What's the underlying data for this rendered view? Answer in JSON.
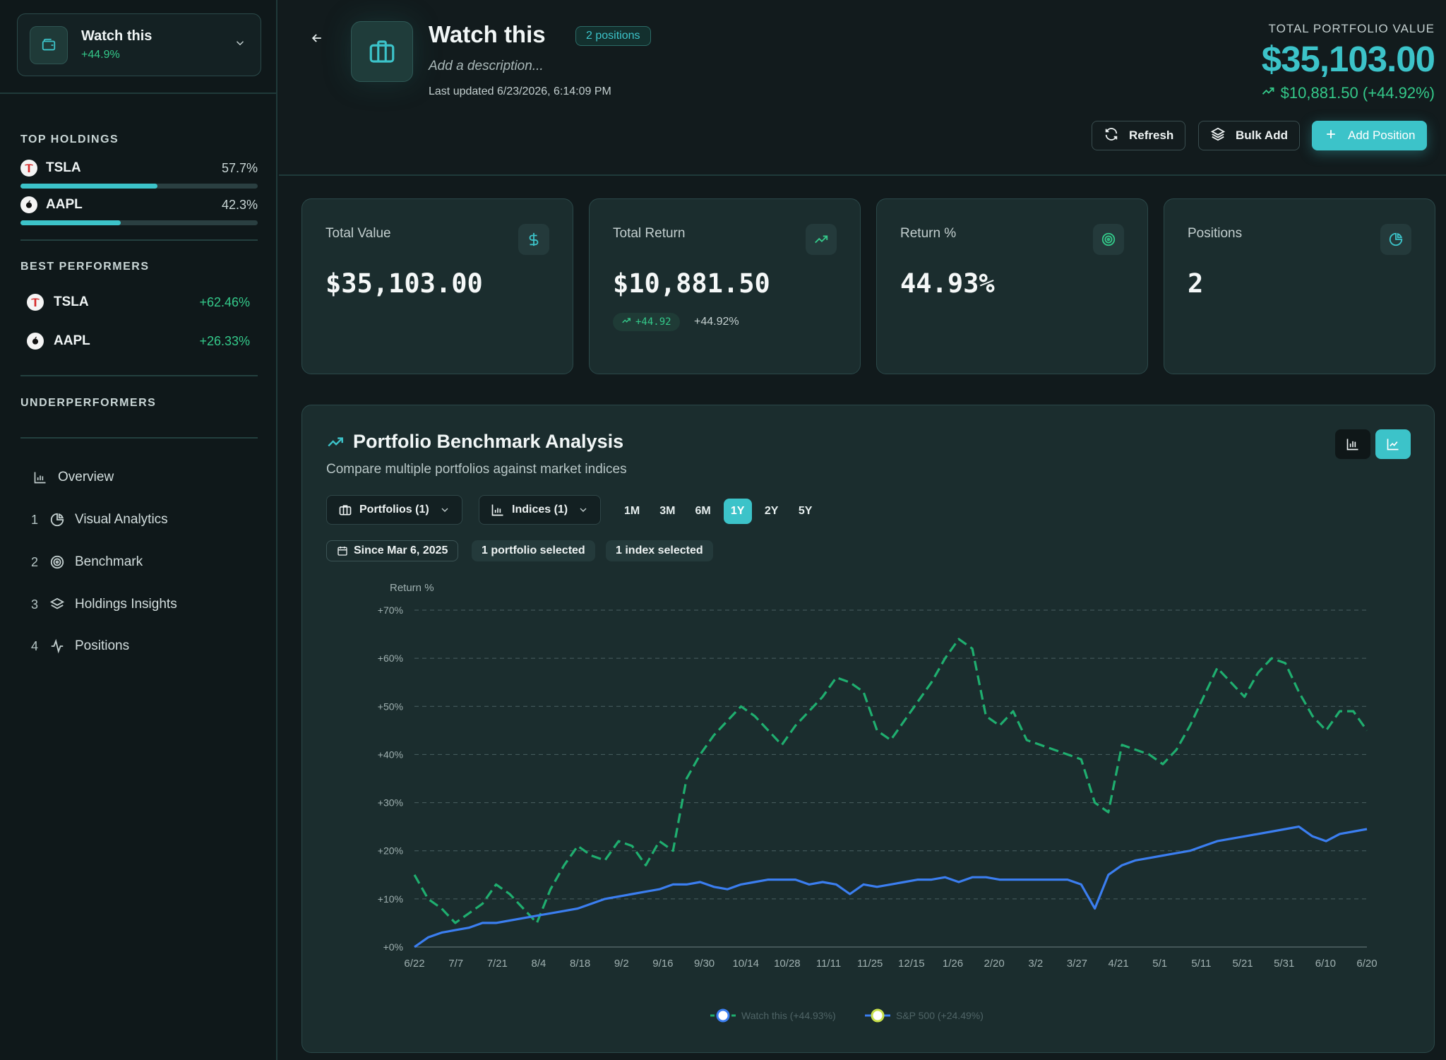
{
  "sidebar": {
    "portfolio_name": "Watch this",
    "portfolio_change": "+44.9%",
    "top_holdings_title": "TOP HOLDINGS",
    "top_holdings": [
      {
        "ticker": "TSLA",
        "pct_label": "57.7%",
        "weight": 0.577,
        "logo": "tesla-logo"
      },
      {
        "ticker": "AAPL",
        "pct_label": "42.3%",
        "weight": 0.423,
        "logo": "apple-logo"
      }
    ],
    "best_title": "BEST PERFORMERS",
    "best": [
      {
        "ticker": "TSLA",
        "change": "+62.46%",
        "logo": "tesla-logo"
      },
      {
        "ticker": "AAPL",
        "change": "+26.33%",
        "logo": "apple-logo"
      }
    ],
    "under_title": "UNDERPERFORMERS",
    "nav": [
      {
        "num": "",
        "label": "Overview",
        "icon": "bar-chart-icon"
      },
      {
        "num": "1",
        "label": "Visual Analytics",
        "icon": "pie-chart-icon"
      },
      {
        "num": "2",
        "label": "Benchmark",
        "icon": "target-icon"
      },
      {
        "num": "3",
        "label": "Holdings Insights",
        "icon": "layers-icon"
      },
      {
        "num": "4",
        "label": "Positions",
        "icon": "activity-icon"
      }
    ]
  },
  "header": {
    "title": "Watch this",
    "positions_badge": "2 positions",
    "description_placeholder": "Add a description...",
    "last_updated": "Last updated 6/23/2026, 6:14:09 PM",
    "total_label": "TOTAL PORTFOLIO VALUE",
    "total_value": "$35,103.00",
    "total_change": "$10,881.50 (+44.92%)",
    "buttons": {
      "refresh": "Refresh",
      "bulk_add": "Bulk Add",
      "add_position": "Add Position"
    }
  },
  "cards": [
    {
      "label": "Total Value",
      "value": "$35,103.00",
      "icon": "dollar-icon"
    },
    {
      "label": "Total Return",
      "value": "$10,881.50",
      "icon": "trending-up-icon",
      "chip": "+44.92",
      "sub": "+44.92%"
    },
    {
      "label": "Return %",
      "value": "44.93%",
      "icon": "target-icon"
    },
    {
      "label": "Positions",
      "value": "2",
      "icon": "pie-chart-icon"
    }
  ],
  "panel": {
    "title": "Portfolio Benchmark Analysis",
    "subtitle": "Compare multiple portfolios against market indices",
    "portfolios_dd": "Portfolios (1)",
    "indices_dd": "Indices (1)",
    "ranges": [
      "1M",
      "3M",
      "6M",
      "1Y",
      "2Y",
      "5Y"
    ],
    "active_range": "1Y",
    "since": "Since Mar 6, 2025",
    "portfolio_selected": "1 portfolio selected",
    "index_selected": "1 index selected"
  },
  "colors": {
    "accent": "#3cc3c9",
    "positive": "#34c98a",
    "portfolio_line": "#1fae6f",
    "benchmark_line": "#3b7ef0"
  },
  "chart_data": {
    "type": "line",
    "ylabel": "Return %",
    "ylim": [
      0,
      70
    ],
    "y_ticks": [
      "+0%",
      "+10%",
      "+20%",
      "+30%",
      "+40%",
      "+50%",
      "+60%",
      "+70%"
    ],
    "x_ticks": [
      "6/22",
      "7/7",
      "7/21",
      "8/4",
      "8/18",
      "9/2",
      "9/16",
      "9/30",
      "10/14",
      "10/28",
      "11/11",
      "11/25",
      "12/15",
      "1/26",
      "2/20",
      "3/2",
      "3/27",
      "4/21",
      "5/1",
      "5/11",
      "5/21",
      "5/31",
      "6/10",
      "6/20"
    ],
    "grid": true,
    "legend_position": "bottom",
    "series": [
      {
        "name": "Watch this (+44.93%)",
        "style": "dashed",
        "points": [
          [
            0,
            15
          ],
          [
            0.5,
            10
          ],
          [
            1,
            8
          ],
          [
            1.5,
            5
          ],
          [
            2,
            7
          ],
          [
            2.5,
            9
          ],
          [
            3,
            13
          ],
          [
            3.5,
            11
          ],
          [
            4,
            8
          ],
          [
            4.5,
            5
          ],
          [
            5,
            12
          ],
          [
            5.5,
            17
          ],
          [
            6,
            21
          ],
          [
            6.5,
            19
          ],
          [
            7,
            18
          ],
          [
            7.5,
            22
          ],
          [
            8,
            21
          ],
          [
            8.5,
            17
          ],
          [
            9,
            22
          ],
          [
            9.5,
            20
          ],
          [
            10,
            35
          ],
          [
            10.5,
            40
          ],
          [
            11,
            44
          ],
          [
            11.5,
            47
          ],
          [
            12,
            50
          ],
          [
            12.5,
            48
          ],
          [
            13,
            45
          ],
          [
            13.5,
            42
          ],
          [
            14,
            46
          ],
          [
            14.5,
            49
          ],
          [
            15,
            52
          ],
          [
            15.5,
            56
          ],
          [
            16,
            55
          ],
          [
            16.5,
            53
          ],
          [
            17,
            45
          ],
          [
            17.5,
            43
          ],
          [
            18,
            47
          ],
          [
            18.5,
            51
          ],
          [
            19,
            55
          ],
          [
            19.5,
            60
          ],
          [
            20,
            64
          ],
          [
            20.5,
            62
          ],
          [
            21,
            48
          ],
          [
            21.5,
            46
          ],
          [
            22,
            49
          ],
          [
            22.5,
            43
          ],
          [
            23,
            42
          ],
          [
            23.5,
            41
          ],
          [
            24,
            40
          ],
          [
            24.5,
            39
          ],
          [
            25,
            30
          ],
          [
            25.5,
            28
          ],
          [
            26,
            42
          ],
          [
            26.5,
            41
          ],
          [
            27,
            40
          ],
          [
            27.5,
            38
          ],
          [
            28,
            41
          ],
          [
            28.5,
            46
          ],
          [
            29,
            52
          ],
          [
            29.5,
            58
          ],
          [
            30,
            55
          ],
          [
            30.5,
            52
          ],
          [
            31,
            57
          ],
          [
            31.5,
            60
          ],
          [
            32,
            59
          ],
          [
            32.5,
            53
          ],
          [
            33,
            48
          ],
          [
            33.5,
            45
          ],
          [
            34,
            49
          ],
          [
            34.5,
            49
          ],
          [
            35,
            45
          ]
        ]
      },
      {
        "name": "S&P 500 (+24.49%)",
        "style": "solid",
        "points": [
          [
            0,
            0
          ],
          [
            0.5,
            2
          ],
          [
            1,
            3
          ],
          [
            1.5,
            3.5
          ],
          [
            2,
            4
          ],
          [
            2.5,
            5
          ],
          [
            3,
            5
          ],
          [
            3.5,
            5.5
          ],
          [
            4,
            6
          ],
          [
            4.5,
            6.5
          ],
          [
            5,
            7
          ],
          [
            5.5,
            7.5
          ],
          [
            6,
            8
          ],
          [
            6.5,
            9
          ],
          [
            7,
            10
          ],
          [
            7.5,
            10.5
          ],
          [
            8,
            11
          ],
          [
            8.5,
            11.5
          ],
          [
            9,
            12
          ],
          [
            9.5,
            13
          ],
          [
            10,
            13
          ],
          [
            10.5,
            13.5
          ],
          [
            11,
            12.5
          ],
          [
            11.5,
            12
          ],
          [
            12,
            13
          ],
          [
            12.5,
            13.5
          ],
          [
            13,
            14
          ],
          [
            13.5,
            14
          ],
          [
            14,
            14
          ],
          [
            14.5,
            13
          ],
          [
            15,
            13.5
          ],
          [
            15.5,
            13
          ],
          [
            16,
            11
          ],
          [
            16.5,
            13
          ],
          [
            17,
            12.5
          ],
          [
            17.5,
            13
          ],
          [
            18,
            13.5
          ],
          [
            18.5,
            14
          ],
          [
            19,
            14
          ],
          [
            19.5,
            14.5
          ],
          [
            20,
            13.5
          ],
          [
            20.5,
            14.5
          ],
          [
            21,
            14.5
          ],
          [
            21.5,
            14
          ],
          [
            22,
            14
          ],
          [
            22.5,
            14
          ],
          [
            23,
            14
          ],
          [
            23.5,
            14
          ],
          [
            24,
            14
          ],
          [
            24.5,
            13
          ],
          [
            25,
            8
          ],
          [
            25.5,
            15
          ],
          [
            26,
            17
          ],
          [
            26.5,
            18
          ],
          [
            27,
            18.5
          ],
          [
            27.5,
            19
          ],
          [
            28,
            19.5
          ],
          [
            28.5,
            20
          ],
          [
            29,
            21
          ],
          [
            29.5,
            22
          ],
          [
            30,
            22.5
          ],
          [
            30.5,
            23
          ],
          [
            31,
            23.5
          ],
          [
            31.5,
            24
          ],
          [
            32,
            24.5
          ],
          [
            32.5,
            25
          ],
          [
            33,
            23
          ],
          [
            33.5,
            22
          ],
          [
            34,
            23.5
          ],
          [
            34.5,
            24
          ],
          [
            35,
            24.5
          ]
        ]
      }
    ]
  }
}
